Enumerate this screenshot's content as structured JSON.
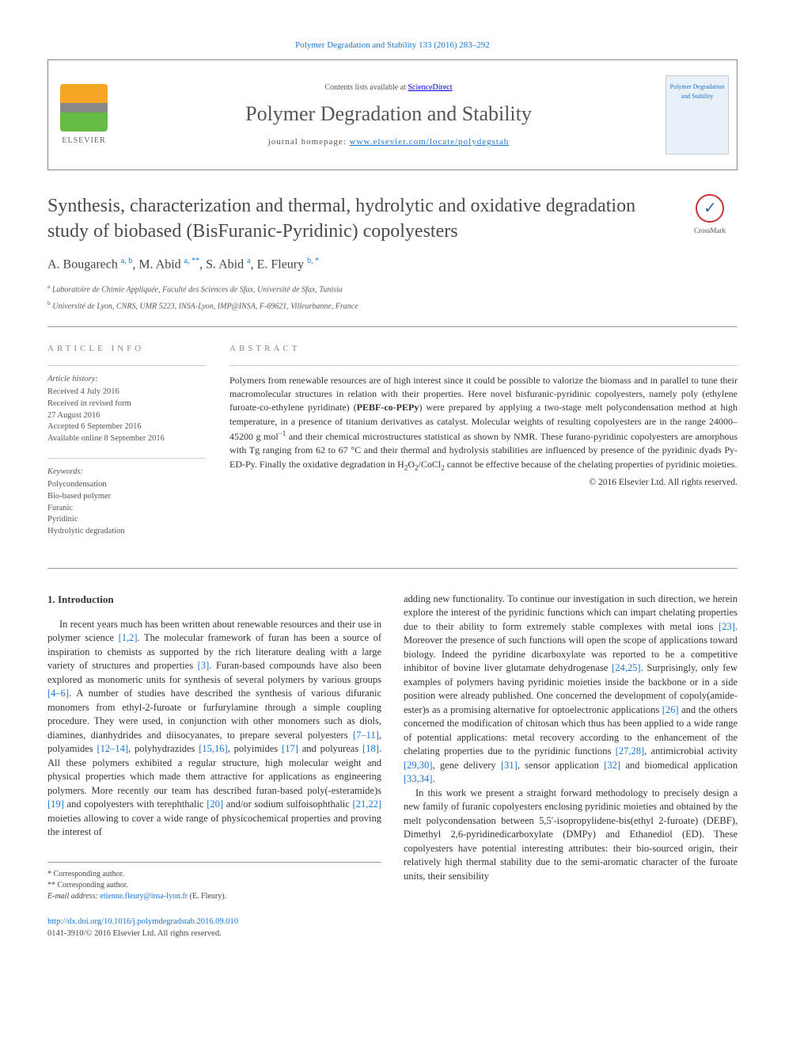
{
  "journal_ref": "Polymer Degradation and Stability 133 (2016) 283–292",
  "header": {
    "contents_prefix": "Contents lists available at ",
    "contents_link": "ScienceDirect",
    "journal_name": "Polymer Degradation and Stability",
    "homepage_prefix": "journal homepage: ",
    "homepage_url": "www.elsevier.com/locate/polydegstab",
    "elsevier_label": "ELSEVIER",
    "cover_text": "Polymer\nDegradation\nand\nStability"
  },
  "article": {
    "title": "Synthesis, characterization and thermal, hydrolytic and oxidative degradation study of biobased (BisFuranic-Pyridinic) copolyesters",
    "crossmark": "CrossMark",
    "authors_html": "A. Bougarech <sup>a, b</sup>, M. Abid <sup>a, **</sup>, S. Abid <sup>a</sup>, E. Fleury <sup>b, *</sup>",
    "affiliations": [
      {
        "sup": "a",
        "text": "Laboratoire de Chimie Appliquée, Faculté des Sciences de Sfax, Université de Sfax, Tunisia"
      },
      {
        "sup": "b",
        "text": "Université de Lyon, CNRS, UMR 5223, INSA-Lyon, IMP@INSA, F-69621, Villeurbanne, France"
      }
    ]
  },
  "info": {
    "label": "article info",
    "history_heading": "Article history:",
    "history": [
      "Received 4 July 2016",
      "Received in revised form",
      "27 August 2016",
      "Accepted 6 September 2016",
      "Available online 8 September 2016"
    ],
    "keywords_heading": "Keywords:",
    "keywords": [
      "Polycondensation",
      "Bio-based polymer",
      "Furanic",
      "Pyridinic",
      "Hydrolytic degradation"
    ]
  },
  "abstract": {
    "label": "abstract",
    "text_html": "Polymers from renewable resources are of high interest since it could be possible to valorize the biomass and in parallel to tune their macromolecular structures in relation with their properties. Here novel bisfuranic-pyridinic copolyesters, namely poly (ethylene furoate-co-ethylene pyridinate) (<b>PEBF-co-PEPy</b>) were prepared by applying a two-stage melt polycondensation method at high temperature, in a presence of titanium derivatives as catalyst. Molecular weights of resulting copolyesters are in the range 24000–45200 g mol<sup>−1</sup> and their chemical microstructures statistical as shown by NMR. These furano-pyridinic copolyesters are amorphous with Tg ranging from 62 to 67 °C and their thermal and hydrolysis stabilities are influenced by presence of the pyridinic dyads Py-ED-Py. Finally the oxidative degradation in H<sub>2</sub>O<sub>2</sub>/CoCl<sub>2</sub> cannot be effective because of the chelating properties of pyridinic moieties.",
    "copyright": "© 2016 Elsevier Ltd. All rights reserved."
  },
  "body": {
    "intro_heading": "1. Introduction",
    "col1_html": "In recent years much has been written about renewable resources and their use in polymer science <a href=\"#\">[1,2]</a>. The molecular framework of furan has been a source of inspiration to chemists as supported by the rich literature dealing with a large variety of structures and properties <a href=\"#\">[3]</a>. Furan-based compounds have also been explored as monomeric units for synthesis of several polymers by various groups <a href=\"#\">[4–6]</a>. A number of studies have described the synthesis of various difuranic monomers from ethyl-2-furoate or furfurylamine through a simple coupling procedure. They were used, in conjunction with other monomers such as diols, diamines, dianhydrides and diisocyanates, to prepare several polyesters <a href=\"#\">[7–11]</a>, polyamides <a href=\"#\">[12–14]</a>, polyhydrazides <a href=\"#\">[15,16]</a>, polyimides <a href=\"#\">[17]</a> and polyureas <a href=\"#\">[18]</a>. All these polymers exhibited a regular structure, high molecular weight and physical properties which made them attractive for applications as engineering polymers. More recently our team has described furan-based poly(-esteramide)s <a href=\"#\">[19]</a> and copolyesters with terephthalic <a href=\"#\">[20]</a> and/or sodium sulfoisophthalic <a href=\"#\">[21,22]</a> moieties allowing to cover a wide range of physicochemical properties and proving the interest of",
    "col2a_html": "adding new functionality. To continue our investigation in such direction, we herein explore the interest of the pyridinic functions which can impart chelating properties due to their ability to form extremely stable complexes with metal ions <a href=\"#\">[23]</a>. Moreover the presence of such functions will open the scope of applications toward biology. Indeed the pyridine dicarboxylate was reported to be a competitive inhibitor of bovine liver glutamate dehydrogenase <a href=\"#\">[24,25]</a>. Surprisingly, only few examples of polymers having pyridinic moieties inside the backbone or in a side position were already published. One concerned the development of copoly(amide-ester)s as a promising alternative for optoelectronic applications <a href=\"#\">[26]</a> and the others concerned the modification of chitosan which thus has been applied to a wide range of potential applications: metal recovery according to the enhancement of the chelating properties due to the pyridinic functions <a href=\"#\">[27,28]</a>, antimicrobial activity <a href=\"#\">[29,30]</a>, gene delivery <a href=\"#\">[31]</a>, sensor application <a href=\"#\">[32]</a> and biomedical application <a href=\"#\">[33,34]</a>.",
    "col2b_html": "In this work we present a straight forward methodology to precisely design a new family of furanic copolyesters enclosing pyridinic moieties and obtained by the melt polycondensation between 5,5′-isopropylidene-bis(ethyl 2-furoate) (DEBF), Dimethyl 2,6-pyridinedicarboxylate (DMPy) and Ethanediol (ED). These copolyesters have potential interesting attributes: their bio-sourced origin, their relatively high thermal stability due to the semi-aromatic character of the furoate units, their sensibility"
  },
  "footer": {
    "corr1": "* Corresponding author.",
    "corr2": "** Corresponding author.",
    "email_label": "E-mail address: ",
    "email": "etienne.fleury@insa-lyon.fr",
    "email_suffix": " (E. Fleury).",
    "doi": "http://dx.doi.org/10.1016/j.polymdegradstab.2016.09.010",
    "issn_line": "0141-3910/© 2016 Elsevier Ltd. All rights reserved."
  },
  "colors": {
    "link": "#1976d2",
    "text": "#333333",
    "muted": "#555555",
    "rule": "#999999"
  }
}
